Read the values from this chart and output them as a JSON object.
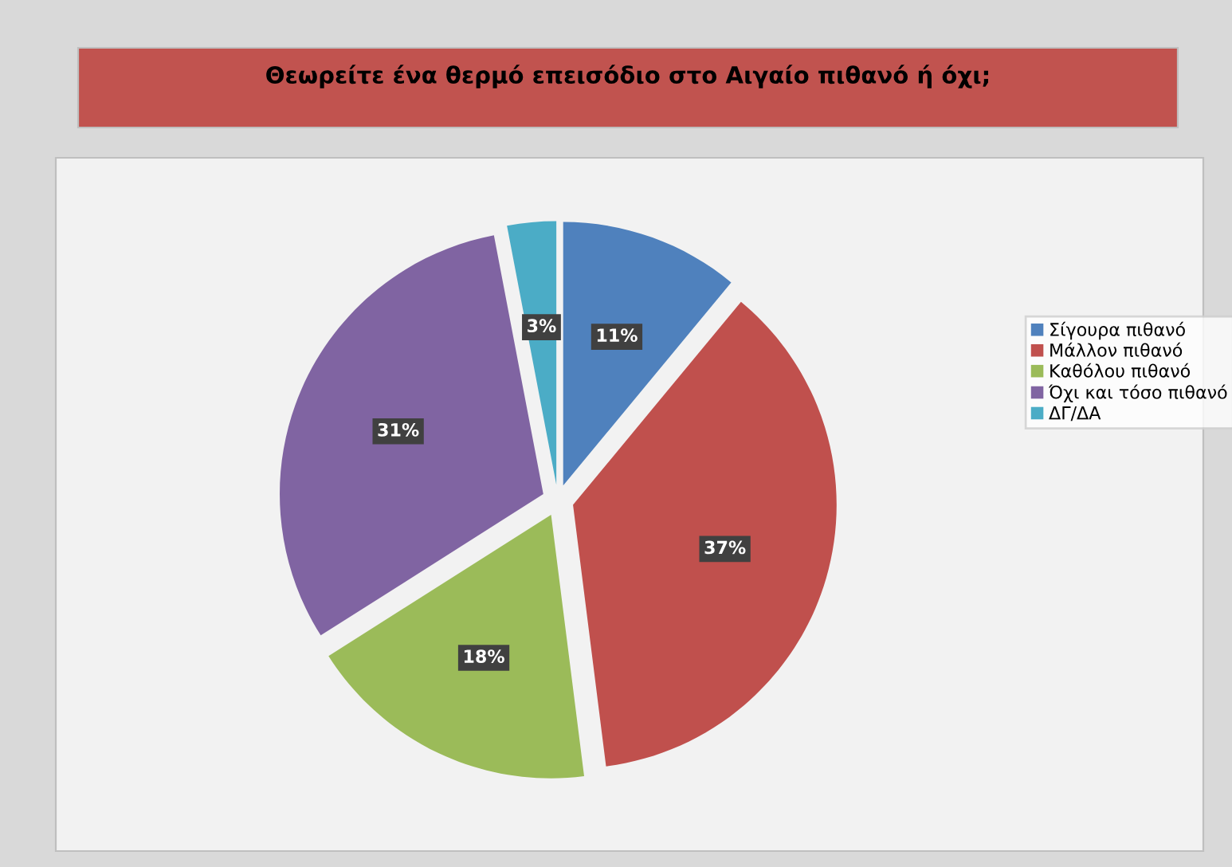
{
  "chart_data": {
    "type": "pie",
    "title": "Θεωρείτε ένα θερμό επεισόδιο στο Αιγαίο πιθανό ή όχι;",
    "categories": [
      "Σίγουρα πιθανό",
      "Μάλλον πιθανό",
      "Καθόλου πιθανό",
      "Όχι και τόσο πιθανό",
      "ΔΓ/ΔΑ"
    ],
    "values": [
      11,
      37,
      18,
      31,
      3
    ],
    "colors": [
      "#4f81bd",
      "#c0504d",
      "#9bbb59",
      "#8064a2",
      "#4bacc6"
    ],
    "value_labels": [
      "11%",
      "37%",
      "18%",
      "31%",
      "3%"
    ],
    "legend": "right"
  }
}
